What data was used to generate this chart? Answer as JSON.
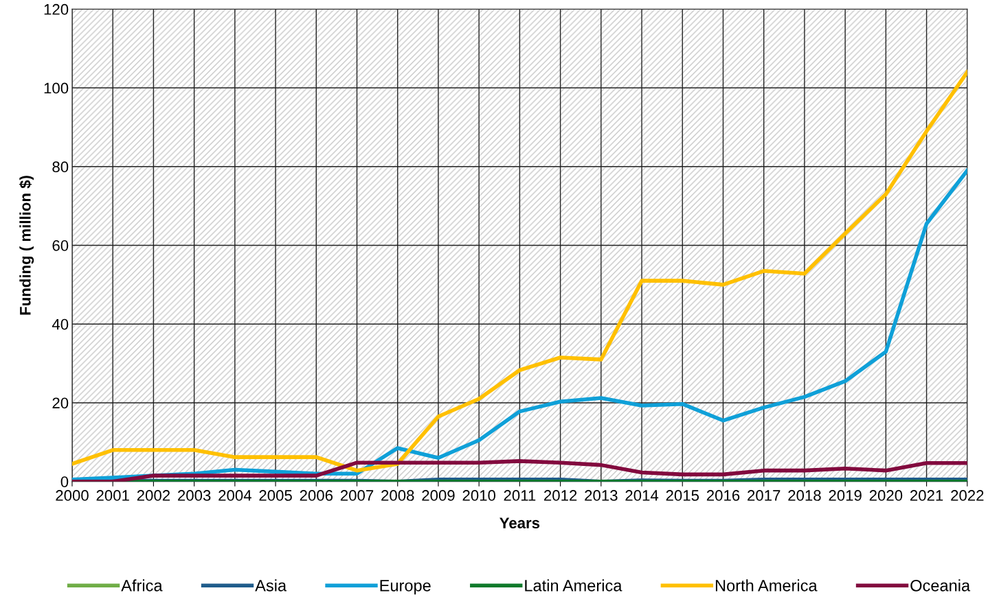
{
  "chart_data": {
    "type": "line",
    "xlabel": "Years",
    "ylabel": "Funding ( million $)",
    "x": [
      2000,
      2001,
      2002,
      2003,
      2004,
      2005,
      2006,
      2007,
      2008,
      2009,
      2010,
      2011,
      2012,
      2013,
      2014,
      2015,
      2016,
      2017,
      2018,
      2019,
      2020,
      2021,
      2022
    ],
    "xlim": [
      2000,
      2022
    ],
    "xticks": [
      2000,
      2001,
      2002,
      2003,
      2004,
      2005,
      2006,
      2007,
      2008,
      2009,
      2010,
      2011,
      2012,
      2013,
      2014,
      2015,
      2016,
      2017,
      2018,
      2019,
      2020,
      2021,
      2022
    ],
    "ylim": [
      0,
      120
    ],
    "yticks": [
      0,
      20,
      40,
      60,
      80,
      100,
      120
    ],
    "grid": true,
    "legend": "bottom",
    "marker": "none",
    "line_style": "solid",
    "series": [
      {
        "name": "Africa",
        "color": "#70ad47",
        "values": [
          null,
          null,
          null,
          null,
          null,
          null,
          null,
          null,
          null,
          null,
          null,
          null,
          null,
          null,
          null,
          null,
          null,
          null,
          null,
          null,
          null,
          null,
          null
        ]
      },
      {
        "name": "Asia",
        "color": "#1f5c8b",
        "values": [
          0.2,
          0.2,
          0.2,
          0.2,
          0.2,
          0.2,
          0.2,
          0.2,
          0,
          0.5,
          0.5,
          0.5,
          0.5,
          0,
          0.3,
          0.2,
          0.2,
          0.5,
          0.5,
          0.5,
          0.5,
          0.5,
          0.5
        ]
      },
      {
        "name": "Europe",
        "color": "#0fa0d8",
        "values": [
          0.5,
          1,
          1.5,
          2,
          3,
          2.5,
          2,
          2,
          8.5,
          6,
          10.5,
          17.8,
          20.3,
          21.2,
          19.3,
          19.7,
          15.5,
          18.8,
          21.5,
          25.5,
          33,
          65.5,
          79
        ]
      },
      {
        "name": "Latin America",
        "color": "#0e7a2b",
        "values": [
          0,
          0,
          0,
          0,
          0,
          0,
          0,
          0,
          0,
          0,
          0,
          0,
          0,
          0,
          0,
          0,
          0,
          0,
          0,
          0,
          0,
          0,
          0
        ]
      },
      {
        "name": "North America",
        "color": "#ffc000",
        "values": [
          4.5,
          8,
          8,
          8,
          6.2,
          6.2,
          6.2,
          2.8,
          4.5,
          16.5,
          21,
          28.3,
          31.5,
          31,
          51,
          51,
          50,
          53.5,
          52.8,
          63,
          73,
          89,
          104
        ]
      },
      {
        "name": "Oceania",
        "color": "#820a3e",
        "values": [
          0,
          0,
          1.5,
          1.5,
          1.5,
          1.5,
          1.5,
          4.8,
          4.8,
          4.8,
          4.8,
          5.2,
          4.8,
          4.2,
          2.3,
          1.8,
          1.8,
          2.8,
          2.8,
          3.3,
          2.8,
          4.7,
          4.7
        ]
      }
    ]
  }
}
